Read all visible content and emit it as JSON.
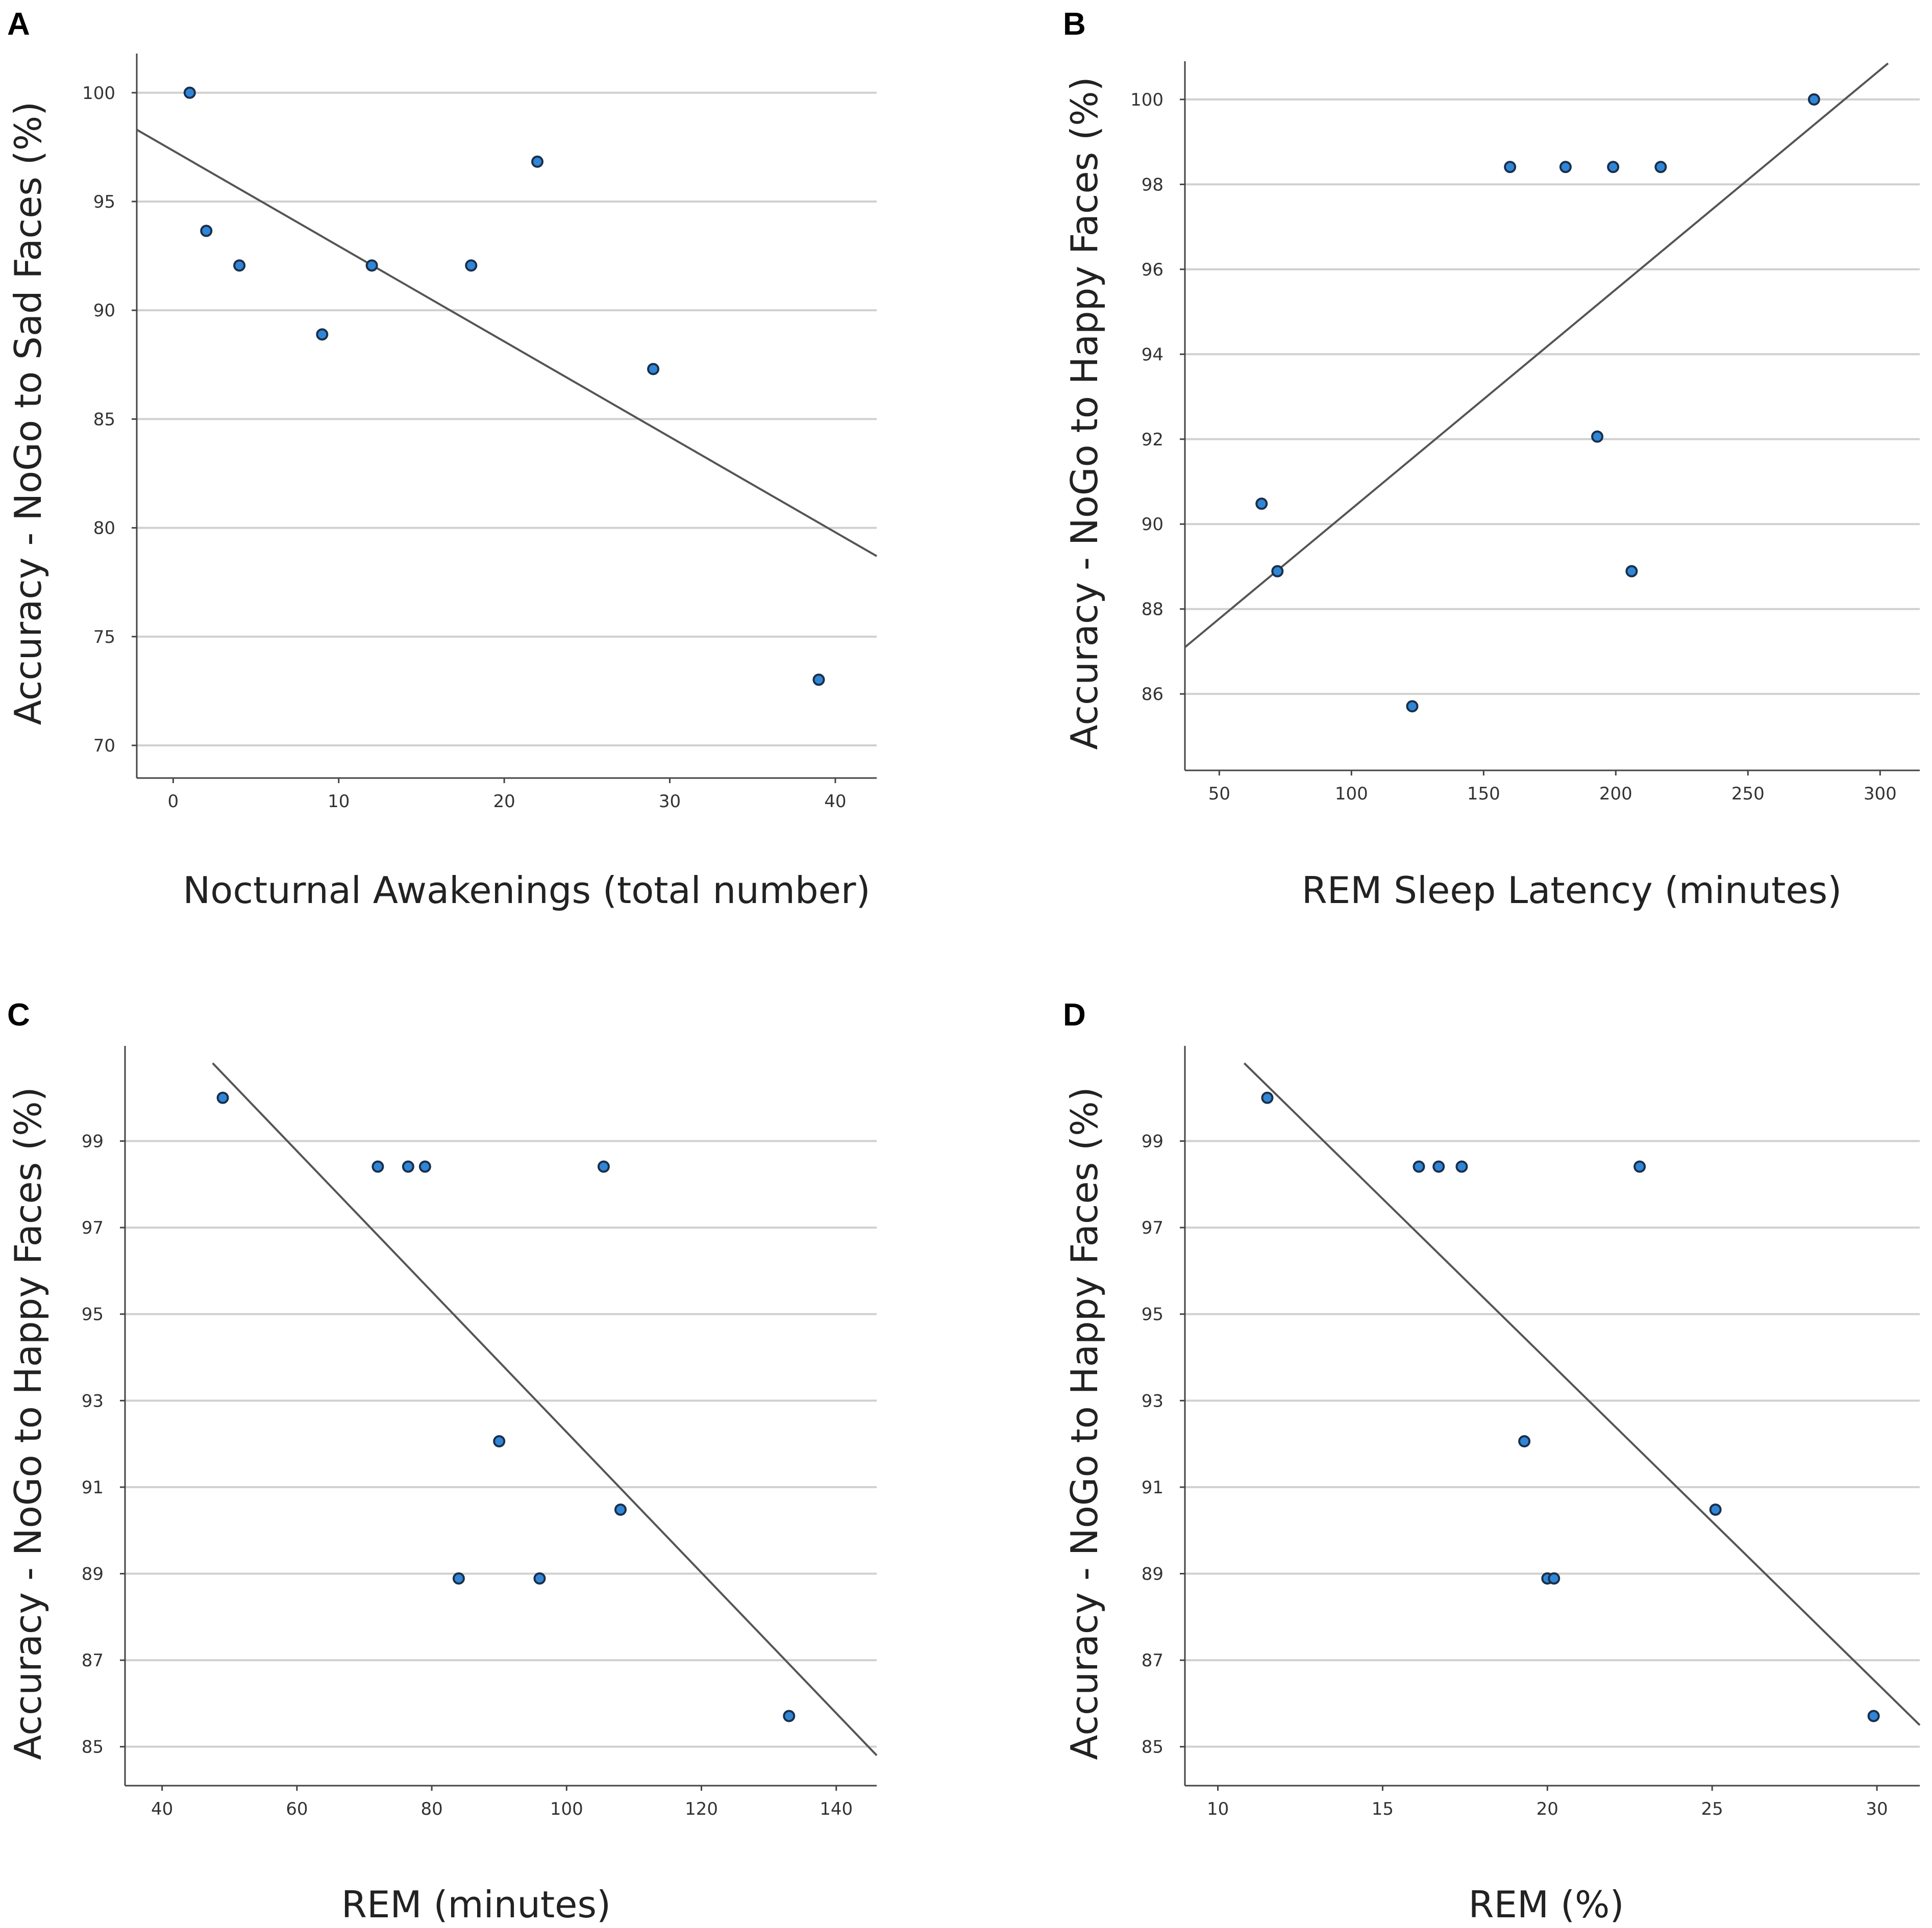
{
  "colors": {
    "point_fill": "#2f86d6",
    "point_stroke": "#1b2f4a",
    "fit_line": "#555555",
    "grid": "#d0d0d0"
  },
  "chart_data": [
    {
      "panel": "A",
      "type": "scatter",
      "title": "",
      "xlabel": "Nocturnal Awakenings (total number)",
      "ylabel": "Accuracy - NoGo to Sad Faces (%)",
      "xlim": [
        -2.2,
        42.5
      ],
      "ylim": [
        68.5,
        101.8
      ],
      "xticks": [
        0,
        10,
        20,
        30,
        40
      ],
      "yticks": [
        70,
        75,
        80,
        85,
        90,
        95,
        100
      ],
      "grid": "horizontal",
      "points": [
        {
          "x": 1,
          "y": 100
        },
        {
          "x": 2,
          "y": 93.65
        },
        {
          "x": 4,
          "y": 92.06
        },
        {
          "x": 9,
          "y": 88.89
        },
        {
          "x": 12,
          "y": 92.06
        },
        {
          "x": 18,
          "y": 92.06
        },
        {
          "x": 22,
          "y": 96.83
        },
        {
          "x": 29,
          "y": 87.3
        },
        {
          "x": 39,
          "y": 73.02
        }
      ],
      "fit": {
        "x": [
          -2.2,
          42.5
        ],
        "y": [
          98.3,
          78.7
        ]
      }
    },
    {
      "panel": "B",
      "type": "scatter",
      "title": "",
      "xlabel": "REM Sleep Latency (minutes)",
      "ylabel": "Accuracy - NoGo to Happy Faces (%)",
      "xlim": [
        37,
        315
      ],
      "ylim": [
        84.2,
        100.9
      ],
      "xticks": [
        50,
        100,
        150,
        200,
        250,
        300
      ],
      "yticks": [
        86,
        88,
        90,
        92,
        94,
        96,
        98,
        100
      ],
      "grid": "horizontal",
      "points": [
        {
          "x": 66,
          "y": 90.48
        },
        {
          "x": 72,
          "y": 88.89
        },
        {
          "x": 123,
          "y": 85.71
        },
        {
          "x": 160,
          "y": 98.41
        },
        {
          "x": 181,
          "y": 98.41
        },
        {
          "x": 193,
          "y": 92.06
        },
        {
          "x": 199,
          "y": 98.41
        },
        {
          "x": 206,
          "y": 88.89
        },
        {
          "x": 217,
          "y": 98.41
        },
        {
          "x": 275,
          "y": 100
        }
      ],
      "fit": {
        "x": [
          37,
          303
        ],
        "y": [
          87.1,
          100.85
        ]
      }
    },
    {
      "panel": "C",
      "type": "scatter",
      "title": "",
      "xlabel": "REM (minutes)",
      "ylabel": "Accuracy - NoGo to Happy Faces (%)",
      "xlim": [
        34.5,
        146
      ],
      "ylim": [
        84.1,
        101.2
      ],
      "xticks": [
        40,
        60,
        80,
        100,
        120,
        140
      ],
      "yticks": [
        85,
        87,
        89,
        91,
        93,
        95,
        97,
        99
      ],
      "grid": "horizontal",
      "points": [
        {
          "x": 49,
          "y": 100
        },
        {
          "x": 72,
          "y": 98.41
        },
        {
          "x": 76.5,
          "y": 98.41
        },
        {
          "x": 79,
          "y": 98.41
        },
        {
          "x": 84,
          "y": 88.89
        },
        {
          "x": 90,
          "y": 92.06
        },
        {
          "x": 96,
          "y": 88.89
        },
        {
          "x": 105.5,
          "y": 98.41
        },
        {
          "x": 108,
          "y": 90.48
        },
        {
          "x": 133,
          "y": 85.71
        }
      ],
      "fit": {
        "x": [
          47.5,
          146
        ],
        "y": [
          100.8,
          84.8
        ]
      }
    },
    {
      "panel": "D",
      "type": "scatter",
      "title": "",
      "xlabel": "REM (%)",
      "ylabel": "Accuracy - NoGo to Happy Faces (%)",
      "xlim": [
        9.0,
        31.3
      ],
      "ylim": [
        84.1,
        101.2
      ],
      "xticks": [
        10,
        15,
        20,
        25,
        30
      ],
      "yticks": [
        85,
        87,
        89,
        91,
        93,
        95,
        97,
        99
      ],
      "grid": "horizontal",
      "points": [
        {
          "x": 11.5,
          "y": 100
        },
        {
          "x": 16.1,
          "y": 98.41
        },
        {
          "x": 16.7,
          "y": 98.41
        },
        {
          "x": 17.4,
          "y": 98.41
        },
        {
          "x": 19.3,
          "y": 92.06
        },
        {
          "x": 20.0,
          "y": 88.89
        },
        {
          "x": 20.2,
          "y": 88.89
        },
        {
          "x": 22.8,
          "y": 98.41
        },
        {
          "x": 25.1,
          "y": 90.48
        },
        {
          "x": 29.9,
          "y": 85.71
        }
      ],
      "fit": {
        "x": [
          10.8,
          31.3
        ],
        "y": [
          100.8,
          85.5
        ]
      }
    }
  ]
}
